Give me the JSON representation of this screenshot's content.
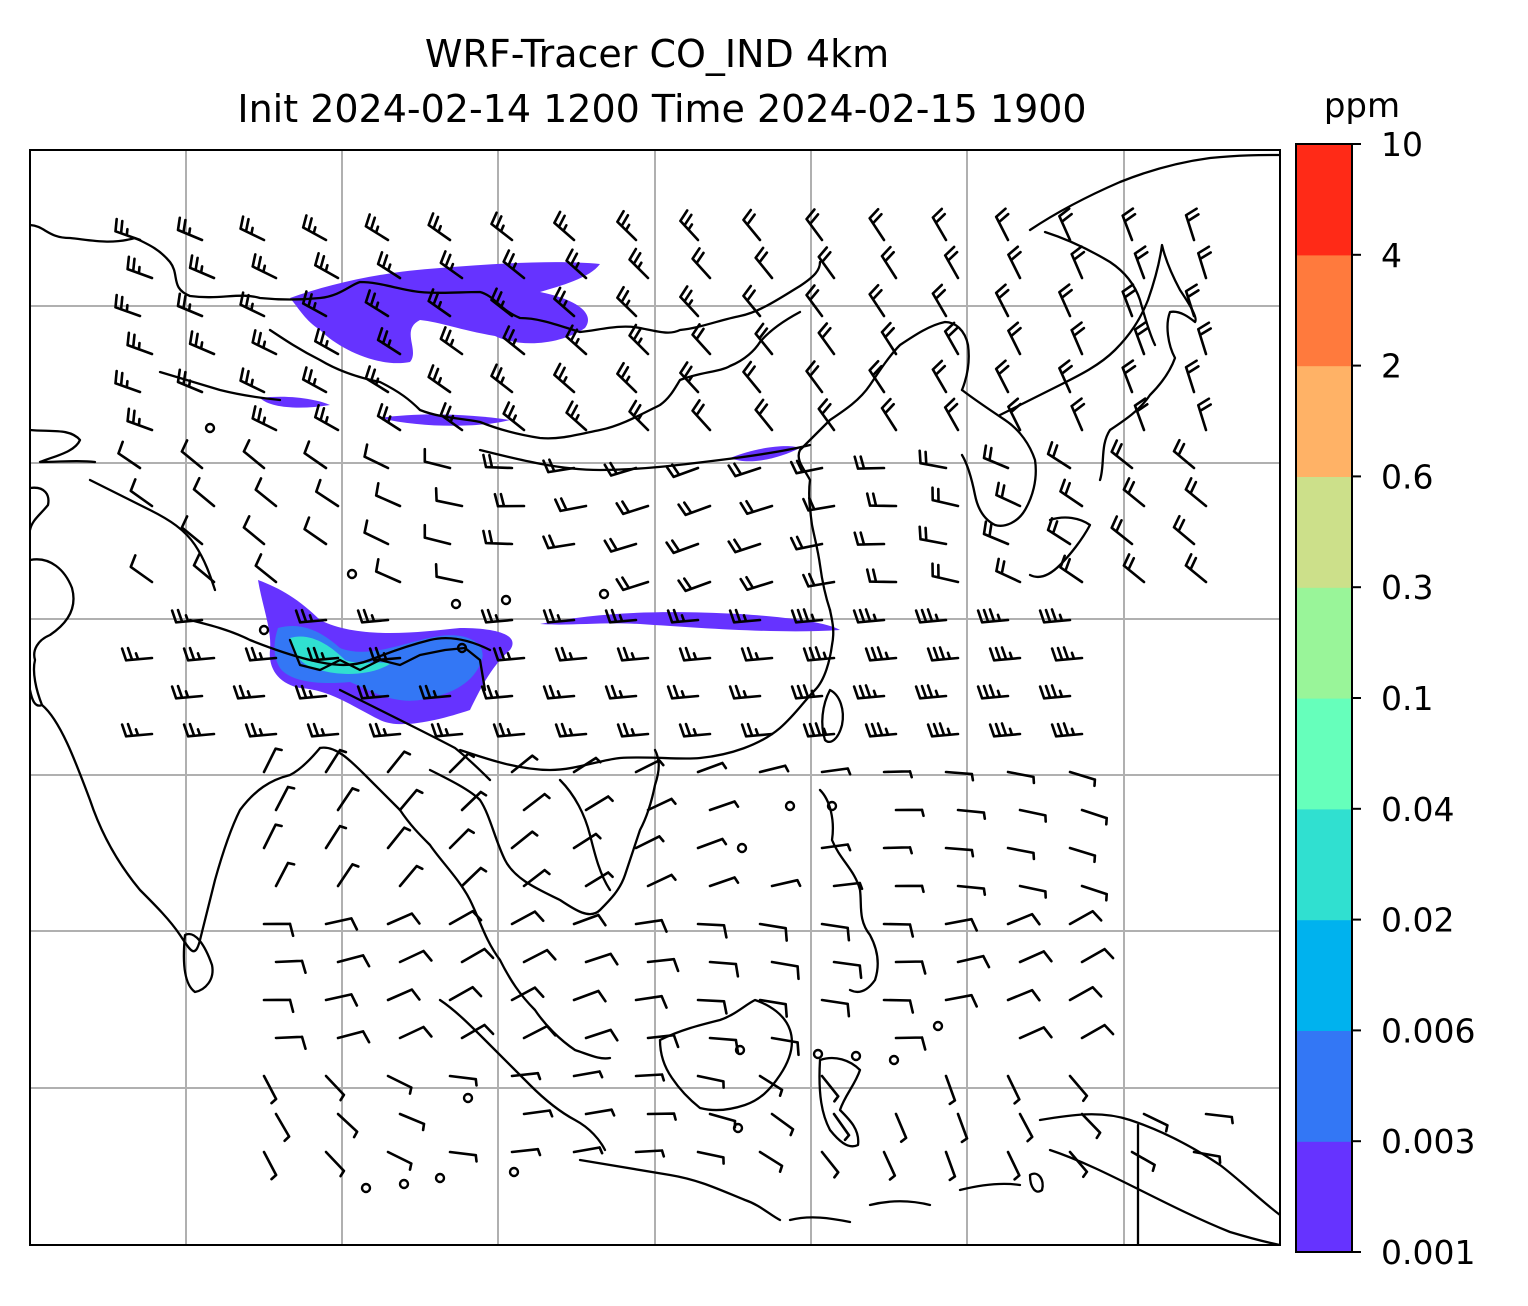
{
  "title": {
    "line1": "WRF-Tracer CO_IND 4km",
    "line2": "Init 2024-02-14 1200 Time 2024-02-15 1900"
  },
  "colorbar": {
    "unit": "ppm",
    "levels": [
      "0.001",
      "0.003",
      "0.006",
      "0.02",
      "0.04",
      "0.1",
      "0.3",
      "0.6",
      "2",
      "4",
      "10"
    ],
    "colors": [
      "#6633ff",
      "#3377f5",
      "#00b2ee",
      "#30e0d0",
      "#66ffbb",
      "#99f599",
      "#cce08a",
      "#ffb266",
      "#ff7a3d",
      "#ff2a17"
    ]
  },
  "map": {
    "style": {
      "coastline_color": "#000000",
      "gridline_color": "#b0b0b0",
      "barb_color": "#000000",
      "plume_color_low": "#6633ff",
      "plume_color_mid": "#3377f5",
      "plume_color_high": "#30e0d0"
    },
    "features": [
      "coastlines",
      "country borders",
      "lat/lon gridlines",
      "wind barbs",
      "CO tracer plumes"
    ]
  }
}
